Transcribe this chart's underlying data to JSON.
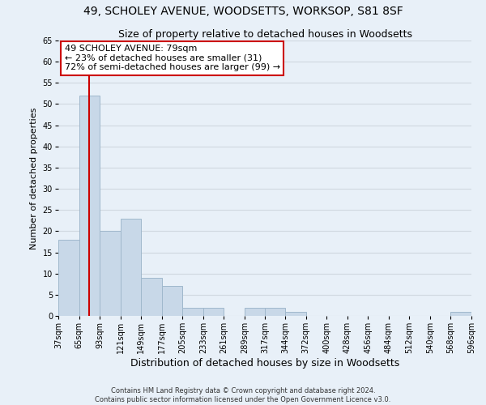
{
  "title1": "49, SCHOLEY AVENUE, WOODSETTS, WORKSOP, S81 8SF",
  "title2": "Size of property relative to detached houses in Woodsetts",
  "xlabel": "Distribution of detached houses by size in Woodsetts",
  "ylabel": "Number of detached properties",
  "footer1": "Contains HM Land Registry data © Crown copyright and database right 2024.",
  "footer2": "Contains public sector information licensed under the Open Government Licence v3.0.",
  "bin_edges": [
    37,
    65,
    93,
    121,
    149,
    177,
    205,
    233,
    261,
    289,
    317,
    344,
    372,
    400,
    428,
    456,
    484,
    512,
    540,
    568,
    596
  ],
  "bin_labels": [
    "37sqm",
    "65sqm",
    "93sqm",
    "121sqm",
    "149sqm",
    "177sqm",
    "205sqm",
    "233sqm",
    "261sqm",
    "289sqm",
    "317sqm",
    "344sqm",
    "372sqm",
    "400sqm",
    "428sqm",
    "456sqm",
    "484sqm",
    "512sqm",
    "540sqm",
    "568sqm",
    "596sqm"
  ],
  "counts": [
    18,
    52,
    20,
    23,
    9,
    7,
    2,
    2,
    0,
    2,
    2,
    1,
    0,
    0,
    0,
    0,
    0,
    0,
    0,
    1
  ],
  "bar_color": "#c8d8e8",
  "bar_edge_color": "#a0b8cc",
  "vline_x": 79,
  "vline_color": "#cc0000",
  "annotation_text": "49 SCHOLEY AVENUE: 79sqm\n← 23% of detached houses are smaller (31)\n72% of semi-detached houses are larger (99) →",
  "annotation_box_color": "#ffffff",
  "annotation_box_edge": "#cc0000",
  "ylim": [
    0,
    65
  ],
  "yticks": [
    0,
    5,
    10,
    15,
    20,
    25,
    30,
    35,
    40,
    45,
    50,
    55,
    60,
    65
  ],
  "grid_color": "#d0d8e0",
  "bg_color": "#e8f0f8",
  "title1_fontsize": 10,
  "title2_fontsize": 9,
  "xlabel_fontsize": 9,
  "ylabel_fontsize": 8,
  "annot_fontsize": 8,
  "footer_fontsize": 6,
  "tick_fontsize": 7
}
